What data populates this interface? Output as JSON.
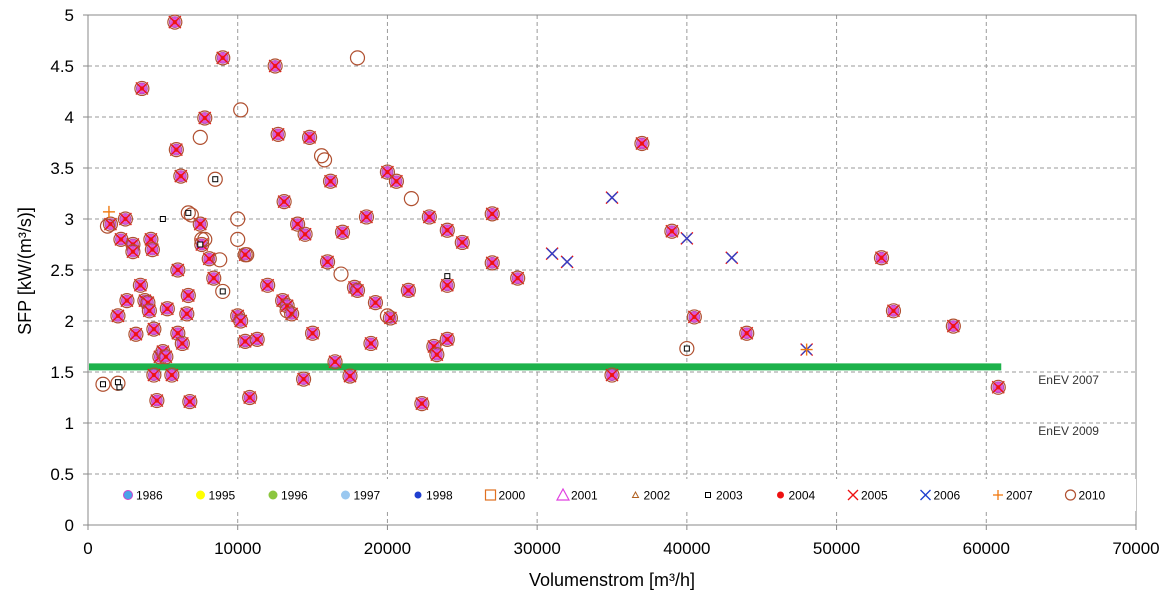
{
  "chart_data": {
    "type": "scatter",
    "title": "",
    "xlabel": "Volumenstrom [m³/h]",
    "ylabel": "SFP [kW/(m³/s)]",
    "xlim": [
      0,
      70000
    ],
    "ylim": [
      0,
      5
    ],
    "x_ticks": [
      0,
      10000,
      20000,
      30000,
      40000,
      50000,
      60000,
      70000
    ],
    "x_tick_labels": [
      "0",
      "10000",
      "20000",
      "30000",
      "40000",
      "50000",
      "60000",
      "70000"
    ],
    "y_ticks": [
      0,
      0.5,
      1,
      1.5,
      2,
      2.5,
      3,
      3.5,
      4,
      4.5,
      5
    ],
    "y_tick_labels": [
      "0",
      "0.5",
      "1",
      "1.5",
      "2",
      "2.5",
      "3",
      "3.5",
      "4",
      "4.5",
      "5"
    ],
    "grid": "dashed",
    "legend_position": "bottom-inside",
    "legend": [
      {
        "label": "1986",
        "marker": "dot",
        "color": "#4aa3e8",
        "edge": "#cc44cc"
      },
      {
        "label": "1995",
        "marker": "dot",
        "color": "#ffff00"
      },
      {
        "label": "1996",
        "marker": "dot",
        "color": "#8cc63f"
      },
      {
        "label": "1997",
        "marker": "dot",
        "color": "#9ac8f0"
      },
      {
        "label": "1998",
        "marker": "dot-small",
        "color": "#1f3fd0"
      },
      {
        "label": "2000",
        "marker": "square-open",
        "color": "#e07020"
      },
      {
        "label": "2001",
        "marker": "triangle-open",
        "color": "#e040e0"
      },
      {
        "label": "2002",
        "marker": "triangle-small",
        "color": "#b06020"
      },
      {
        "label": "2003",
        "marker": "square-small",
        "color": "#000000"
      },
      {
        "label": "2004",
        "marker": "dot-small",
        "color": "#ee1111"
      },
      {
        "label": "2005",
        "marker": "x",
        "color": "#ee1111"
      },
      {
        "label": "2006",
        "marker": "x",
        "color": "#1f3fd0"
      },
      {
        "label": "2007",
        "marker": "plus",
        "color": "#f07a10"
      },
      {
        "label": "2010",
        "marker": "circle-open",
        "color": "#b05030"
      }
    ],
    "reference_line": {
      "y": 1.55,
      "x_end": 61000,
      "color": "#1db24b"
    },
    "annotations": [
      {
        "text": "EnEV 2007",
        "x": 65500,
        "y": 1.38
      },
      {
        "text": "EnEV 2009",
        "x": 65500,
        "y": 0.88
      }
    ],
    "points_full": [
      [
        1500,
        2.95
      ],
      [
        2000,
        2.05
      ],
      [
        2200,
        2.8
      ],
      [
        2500,
        3.0
      ],
      [
        2600,
        2.2
      ],
      [
        3000,
        2.75
      ],
      [
        3000,
        2.68
      ],
      [
        3200,
        1.87
      ],
      [
        3500,
        2.35
      ],
      [
        3600,
        4.28
      ],
      [
        3800,
        2.2
      ],
      [
        4000,
        2.18
      ],
      [
        4100,
        2.1
      ],
      [
        4200,
        2.8
      ],
      [
        4300,
        2.7
      ],
      [
        4400,
        1.92
      ],
      [
        4400,
        1.47
      ],
      [
        4600,
        1.22
      ],
      [
        4800,
        1.65
      ],
      [
        5000,
        1.7
      ],
      [
        5200,
        1.65
      ],
      [
        5300,
        2.12
      ],
      [
        5600,
        1.47
      ],
      [
        5800,
        4.93
      ],
      [
        5900,
        3.68
      ],
      [
        6000,
        1.88
      ],
      [
        6000,
        2.5
      ],
      [
        6200,
        3.42
      ],
      [
        6300,
        1.78
      ],
      [
        6600,
        2.07
      ],
      [
        6700,
        2.25
      ],
      [
        6800,
        1.21
      ],
      [
        7500,
        2.95
      ],
      [
        7600,
        2.75
      ],
      [
        7800,
        3.99
      ],
      [
        8100,
        2.61
      ],
      [
        8400,
        2.42
      ],
      [
        9000,
        4.58
      ],
      [
        10000,
        2.05
      ],
      [
        10200,
        2.0
      ],
      [
        10500,
        2.65
      ],
      [
        10500,
        1.8
      ],
      [
        10800,
        1.25
      ],
      [
        11300,
        1.82
      ],
      [
        12000,
        2.35
      ],
      [
        12500,
        4.5
      ],
      [
        12700,
        3.83
      ],
      [
        13000,
        2.2
      ],
      [
        13100,
        3.17
      ],
      [
        13300,
        2.15
      ],
      [
        13600,
        2.07
      ],
      [
        14000,
        2.95
      ],
      [
        14400,
        1.43
      ],
      [
        14500,
        2.85
      ],
      [
        14800,
        3.8
      ],
      [
        15000,
        1.88
      ],
      [
        16000,
        2.58
      ],
      [
        16200,
        3.37
      ],
      [
        16500,
        1.6
      ],
      [
        17000,
        2.87
      ],
      [
        17500,
        1.46
      ],
      [
        17800,
        2.33
      ],
      [
        18000,
        2.3
      ],
      [
        18600,
        3.02
      ],
      [
        18900,
        1.78
      ],
      [
        19200,
        2.18
      ],
      [
        20000,
        3.46
      ],
      [
        20200,
        2.03
      ],
      [
        20600,
        3.37
      ],
      [
        21400,
        2.3
      ],
      [
        22300,
        1.19
      ],
      [
        22800,
        3.02
      ],
      [
        23100,
        1.75
      ],
      [
        23300,
        1.67
      ],
      [
        24000,
        2.35
      ],
      [
        24000,
        1.82
      ],
      [
        24000,
        2.89
      ],
      [
        25000,
        2.77
      ],
      [
        27000,
        3.05
      ],
      [
        27000,
        2.57
      ],
      [
        28700,
        2.42
      ],
      [
        35000,
        1.47
      ],
      [
        37000,
        3.74
      ],
      [
        39000,
        2.88
      ],
      [
        40500,
        2.04
      ],
      [
        44000,
        1.88
      ],
      [
        53000,
        2.62
      ],
      [
        53800,
        2.1
      ],
      [
        57800,
        1.95
      ],
      [
        60800,
        1.35
      ]
    ],
    "points_circle_only": [
      [
        1300,
        2.93
      ],
      [
        7500,
        3.8
      ],
      [
        7600,
        2.8
      ],
      [
        7800,
        2.8
      ],
      [
        8800,
        2.6
      ],
      [
        10000,
        2.8
      ],
      [
        10000,
        3.0
      ],
      [
        10200,
        4.07
      ],
      [
        10600,
        2.65
      ],
      [
        13300,
        2.1
      ],
      [
        15600,
        3.62
      ],
      [
        15800,
        3.58
      ],
      [
        16900,
        2.46
      ],
      [
        18000,
        4.58
      ],
      [
        20000,
        2.05
      ],
      [
        21600,
        3.2
      ],
      [
        40000,
        1.73
      ],
      [
        6700,
        3.06
      ],
      [
        6900,
        3.04
      ],
      [
        9000,
        2.29
      ],
      [
        8500,
        3.39
      ],
      [
        1000,
        1.38
      ],
      [
        2000,
        1.39
      ]
    ],
    "points_2003_only": [
      [
        1000,
        1.38
      ],
      [
        2000,
        1.4
      ],
      [
        2100,
        1.35
      ],
      [
        40000,
        1.73
      ],
      [
        8500,
        3.39
      ],
      [
        9000,
        2.29
      ],
      [
        5000,
        3.0
      ],
      [
        24000,
        2.44
      ],
      [
        6700,
        3.06
      ],
      [
        7500,
        2.75
      ]
    ],
    "points_x_only": [
      [
        31000,
        2.66
      ],
      [
        32000,
        2.58
      ],
      [
        35000,
        3.21
      ],
      [
        40000,
        2.81
      ],
      [
        43000,
        2.62
      ],
      [
        48000,
        1.72
      ]
    ],
    "points_plus_only": [
      [
        1400,
        3.07
      ],
      [
        48000,
        1.72
      ]
    ]
  }
}
